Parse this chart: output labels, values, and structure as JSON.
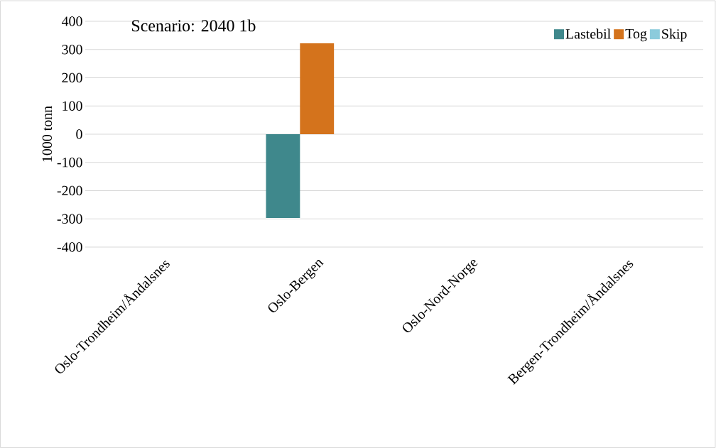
{
  "chart_data": {
    "type": "bar",
    "title": "Scenario: 2040 1b",
    "ylabel": "1000 tonn",
    "categories": [
      "Oslo-Trondheim/Åndalsnes",
      "Oslo-Bergen",
      "Oslo-Nord-Norge",
      "Bergen-Trondheim/Åndalsnes"
    ],
    "series": [
      {
        "name": "Lastebil",
        "color": "#3f888c",
        "values": [
          0,
          -297,
          0,
          0
        ]
      },
      {
        "name": "Tog",
        "color": "#d4731c",
        "values": [
          0,
          322,
          0,
          0
        ]
      },
      {
        "name": "Skip",
        "color": "#8ccbdc",
        "values": [
          0,
          0,
          0,
          0
        ]
      }
    ],
    "ylim": [
      -400,
      400
    ],
    "yticks": [
      -400,
      -300,
      -200,
      -100,
      0,
      100,
      200,
      300,
      400
    ],
    "grid": "y",
    "legend": "top right"
  }
}
